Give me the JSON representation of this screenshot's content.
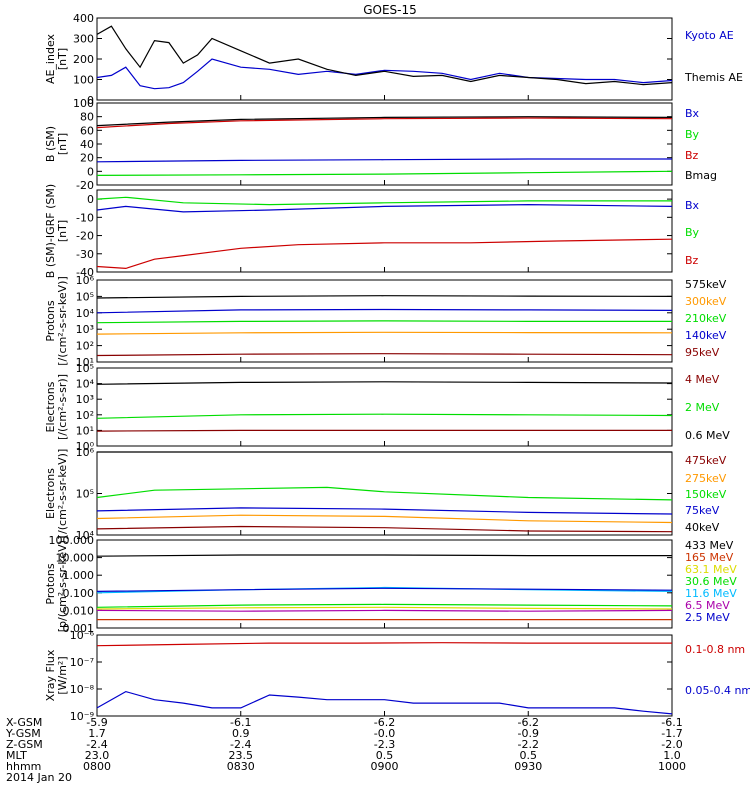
{
  "title": "GOES-15",
  "colors": {
    "black": "#000000",
    "blue": "#0000cc",
    "green": "#00dd00",
    "red": "#cc0000",
    "orange": "#ff9900",
    "darkred": "#880000",
    "yellow": "#dddd00",
    "cyan": "#00bbff",
    "magenta": "#aa00aa",
    "brown": "#cc3300"
  },
  "chart_data": [
    {
      "type": "line",
      "ylabel": [
        "AE_index",
        "[nT]"
      ],
      "ylim": [
        0,
        400
      ],
      "yticks": [
        "400",
        "300",
        "200",
        "100",
        "0"
      ],
      "tickvals": [
        400,
        300,
        200,
        100,
        0
      ],
      "series": [
        {
          "name": "Kyoto AE",
          "color": "blue",
          "x": [
            0,
            0.05,
            0.1,
            0.15,
            0.2,
            0.25,
            0.3,
            0.35,
            0.4,
            0.5,
            0.6,
            0.7,
            0.8,
            0.9,
            1,
            1.1,
            1.2,
            1.3,
            1.4,
            1.5,
            1.6,
            1.7,
            1.8,
            1.9,
            2
          ],
          "values": [
            110,
            120,
            160,
            70,
            55,
            60,
            85,
            140,
            200,
            160,
            150,
            125,
            140,
            125,
            145,
            140,
            130,
            100,
            130,
            110,
            105,
            100,
            100,
            85,
            95
          ]
        },
        {
          "name": "Themis AE",
          "color": "black",
          "x": [
            0,
            0.05,
            0.1,
            0.15,
            0.2,
            0.25,
            0.3,
            0.35,
            0.4,
            0.5,
            0.6,
            0.7,
            0.8,
            0.9,
            1,
            1.1,
            1.2,
            1.3,
            1.4,
            1.5,
            1.6,
            1.7,
            1.8,
            1.9,
            2
          ],
          "values": [
            320,
            360,
            250,
            160,
            290,
            280,
            180,
            220,
            300,
            240,
            180,
            200,
            150,
            120,
            140,
            115,
            120,
            90,
            120,
            110,
            100,
            80,
            90,
            75,
            85
          ]
        }
      ]
    },
    {
      "type": "line",
      "ylabel": [
        "B (SM)",
        "[nT]"
      ],
      "ylim": [
        -20,
        100
      ],
      "yticks": [
        "100",
        "80",
        "60",
        "40",
        "20",
        "0",
        "-20"
      ],
      "tickvals": [
        100,
        80,
        60,
        40,
        20,
        0,
        -20
      ],
      "series": [
        {
          "name": "Bx",
          "color": "blue",
          "x": [
            0,
            0.5,
            1,
            1.5,
            2
          ],
          "values": [
            14,
            16,
            17,
            18,
            18
          ]
        },
        {
          "name": "By",
          "color": "green",
          "x": [
            0,
            0.5,
            1,
            1.5,
            2
          ],
          "values": [
            -6,
            -5,
            -4,
            -2,
            0
          ]
        },
        {
          "name": "Bz",
          "color": "red",
          "x": [
            0,
            0.25,
            0.5,
            1,
            1.5,
            2
          ],
          "values": [
            64,
            70,
            74,
            77,
            78,
            77
          ]
        },
        {
          "name": "Bmag",
          "color": "black",
          "x": [
            0,
            0.25,
            0.5,
            1,
            1.5,
            2
          ],
          "values": [
            67,
            72,
            76,
            79,
            80,
            79
          ]
        }
      ]
    },
    {
      "type": "line",
      "ylabel": [
        "B (SM)-IGRF (SM)",
        "[nT]"
      ],
      "ylim": [
        -40,
        5
      ],
      "yticks": [
        "0",
        "-10",
        "-20",
        "-30",
        "-40"
      ],
      "tickvals": [
        0,
        -10,
        -20,
        -30,
        -40
      ],
      "series": [
        {
          "name": "Bx",
          "color": "blue",
          "x": [
            0,
            0.1,
            0.3,
            0.6,
            1,
            1.5,
            2
          ],
          "values": [
            -6,
            -4,
            -7,
            -6,
            -4,
            -3,
            -4
          ]
        },
        {
          "name": "By",
          "color": "green",
          "x": [
            0,
            0.1,
            0.3,
            0.6,
            1,
            1.5,
            2
          ],
          "values": [
            0,
            1,
            -2,
            -3,
            -2,
            -1,
            -1
          ]
        },
        {
          "name": "Bz",
          "color": "red",
          "x": [
            0,
            0.1,
            0.2,
            0.3,
            0.5,
            0.7,
            1,
            1.3,
            1.6,
            2
          ],
          "values": [
            -37,
            -38,
            -33,
            -31,
            -27,
            -25,
            -24,
            -24,
            -23,
            -22
          ]
        }
      ]
    },
    {
      "type": "line",
      "ylabel": [
        "Protons",
        "[/(cm²-s-sr-keV)]"
      ],
      "ylog": true,
      "ylim": [
        10,
        1000000
      ],
      "yticks": [
        "10⁶",
        "10⁵",
        "10⁴",
        "10³",
        "10²",
        "10¹"
      ],
      "tickvals": [
        1000000,
        100000,
        10000,
        1000,
        100,
        10
      ],
      "series": [
        {
          "name": "575keV",
          "color": "black",
          "x": [
            0,
            0.5,
            1,
            1.5,
            2
          ],
          "values": [
            80000,
            100000,
            110000,
            105000,
            100000
          ]
        },
        {
          "name": "300keV",
          "color": "orange",
          "x": [
            0,
            0.5,
            1,
            1.5,
            2
          ],
          "values": [
            500,
            600,
            650,
            620,
            600
          ]
        },
        {
          "name": "210keV",
          "color": "green",
          "x": [
            0,
            0.5,
            1,
            1.5,
            2
          ],
          "values": [
            2500,
            3000,
            3200,
            3000,
            3000
          ]
        },
        {
          "name": "140keV",
          "color": "blue",
          "x": [
            0,
            0.5,
            1,
            1.5,
            2
          ],
          "values": [
            10000,
            15000,
            16000,
            15000,
            14000
          ]
        },
        {
          "name": "95keV",
          "color": "darkred",
          "x": [
            0,
            0.5,
            1,
            1.5,
            2
          ],
          "values": [
            25,
            30,
            32,
            30,
            28
          ]
        }
      ]
    },
    {
      "type": "line",
      "ylabel": [
        "Electrons",
        "[/(cm²-s-sr)]"
      ],
      "ylog": true,
      "ylim": [
        1,
        100000
      ],
      "yticks": [
        "10⁵",
        "10⁴",
        "10³",
        "10²",
        "10¹",
        "10⁰"
      ],
      "tickvals": [
        100000,
        10000,
        1000,
        100,
        10,
        1
      ],
      "series": [
        {
          "name": "4 MeV",
          "color": "darkred",
          "x": [
            0,
            0.5,
            1,
            1.5,
            2
          ],
          "values": [
            9,
            10,
            10,
            10,
            10
          ]
        },
        {
          "name": "2 MeV",
          "color": "green",
          "x": [
            0,
            0.5,
            1,
            1.5,
            2
          ],
          "values": [
            60,
            100,
            110,
            100,
            90
          ]
        },
        {
          "name": "0.6 MeV",
          "color": "black",
          "x": [
            0,
            0.5,
            1,
            1.5,
            2
          ],
          "values": [
            9000,
            12000,
            13000,
            12000,
            11000
          ]
        }
      ]
    },
    {
      "type": "line",
      "ylabel": [
        "Electrons",
        "[/(cm²-s-sr-keV)]"
      ],
      "ylog": true,
      "ylim": [
        10000,
        1000000
      ],
      "yticks": [
        "10⁶",
        "10⁵",
        "10⁴"
      ],
      "tickvals": [
        1000000,
        100000,
        10000
      ],
      "series": [
        {
          "name": "475keV",
          "color": "darkred",
          "x": [
            0,
            0.5,
            1,
            1.5,
            2
          ],
          "values": [
            14000,
            16000,
            15000,
            12500,
            12000
          ]
        },
        {
          "name": "275keV",
          "color": "orange",
          "x": [
            0,
            0.5,
            1,
            1.5,
            2
          ],
          "values": [
            25000,
            30000,
            28000,
            22000,
            20000
          ]
        },
        {
          "name": "150keV",
          "color": "green",
          "x": [
            0,
            0.2,
            0.5,
            0.8,
            1,
            1.5,
            2
          ],
          "values": [
            80000,
            120000,
            130000,
            140000,
            110000,
            80000,
            70000
          ]
        },
        {
          "name": "75keV",
          "color": "blue",
          "x": [
            0,
            0.5,
            1,
            1.5,
            2
          ],
          "values": [
            38000,
            45000,
            42000,
            35000,
            32000
          ]
        },
        {
          "name": "40keV",
          "color": "black",
          "x": [
            0,
            0.5,
            1,
            1.5,
            2
          ],
          "values": [
            1000000,
            1000000,
            1000000,
            1000000,
            1000000
          ]
        }
      ]
    },
    {
      "type": "line",
      "ylabel": [
        "Protons",
        "[p/(cm²-s-sr-keV)]"
      ],
      "ylog": true,
      "ylim": [
        0.001,
        100
      ],
      "yticks": [
        "100.000",
        "10.000",
        "1.000",
        "0.100",
        "0.010",
        "0.001"
      ],
      "tickvals": [
        100,
        10,
        1,
        0.1,
        0.01,
        0.001
      ],
      "series": [
        {
          "name": "433 MeV",
          "color": "black",
          "x": [
            0,
            0.5,
            1,
            1.5,
            2
          ],
          "values": [
            12,
            14,
            14,
            13,
            13
          ]
        },
        {
          "name": "165 MeV",
          "color": "brown",
          "x": [
            0,
            0.5,
            1,
            1.5,
            2
          ],
          "values": [
            0.003,
            0.003,
            0.003,
            0.003,
            0.003
          ]
        },
        {
          "name": "63.1 MeV",
          "color": "yellow",
          "x": [
            0,
            0.5,
            1,
            1.5,
            2
          ],
          "values": [
            0.012,
            0.014,
            0.015,
            0.013,
            0.012
          ]
        },
        {
          "name": "30.6 MeV",
          "color": "green",
          "x": [
            0,
            0.5,
            1,
            1.5,
            2
          ],
          "values": [
            0.015,
            0.02,
            0.022,
            0.02,
            0.018
          ]
        },
        {
          "name": "11.6 MeV",
          "color": "cyan",
          "x": [
            0,
            0.5,
            1,
            1.5,
            2
          ],
          "values": [
            0.1,
            0.15,
            0.2,
            0.15,
            0.12
          ]
        },
        {
          "name": "6.5 MeV",
          "color": "magenta",
          "x": [
            0,
            0.5,
            1,
            1.5,
            2
          ],
          "values": [
            0.01,
            0.009,
            0.01,
            0.009,
            0.01
          ]
        },
        {
          "name": "2.5 MeV",
          "color": "blue",
          "x": [
            0,
            0.5,
            1,
            1.5,
            2
          ],
          "values": [
            0.12,
            0.15,
            0.18,
            0.16,
            0.14
          ]
        }
      ]
    },
    {
      "type": "line",
      "ylabel": [
        "Xray Flux",
        "[W/m²]"
      ],
      "ylog": true,
      "ylim": [
        1e-09,
        1e-06
      ],
      "yticks": [
        "10⁻⁶",
        "10⁻⁷",
        "10⁻⁸",
        "10⁻⁹"
      ],
      "tickvals": [
        1e-06,
        1e-07,
        1e-08,
        1e-09
      ],
      "series": [
        {
          "name": "0.1-0.8 nm",
          "color": "red",
          "x": [
            0,
            0.3,
            0.6,
            0.9,
            1.2,
            1.5,
            1.8,
            2
          ],
          "values": [
            4e-07,
            4.5e-07,
            5e-07,
            5e-07,
            5.2e-07,
            5e-07,
            5e-07,
            5e-07
          ]
        },
        {
          "name": "0.05-0.4 nm",
          "color": "blue",
          "x": [
            0,
            0.1,
            0.2,
            0.3,
            0.4,
            0.5,
            0.6,
            0.7,
            0.8,
            0.9,
            1,
            1.1,
            1.2,
            1.3,
            1.4,
            1.5,
            1.6,
            1.7,
            1.8,
            1.9,
            2
          ],
          "values": [
            2e-09,
            8e-09,
            4e-09,
            3e-09,
            2e-09,
            2e-09,
            6e-09,
            5e-09,
            4e-09,
            4e-09,
            4e-09,
            3e-09,
            3e-09,
            3e-09,
            3e-09,
            2e-09,
            2e-09,
            2e-09,
            2e-09,
            1.5e-09,
            1.2e-09
          ]
        }
      ]
    }
  ],
  "xaxis": {
    "rows": [
      {
        "label": "X-GSM",
        "values": [
          "-5.9",
          "-6.1",
          "-6.2",
          "-6.2",
          "-6.1"
        ]
      },
      {
        "label": "Y-GSM",
        "values": [
          "1.7",
          "0.9",
          "-0.0",
          "-0.9",
          "-1.7"
        ]
      },
      {
        "label": "Z-GSM",
        "values": [
          "-2.4",
          "-2.4",
          "-2.3",
          "-2.2",
          "-2.0"
        ]
      },
      {
        "label": "MLT",
        "values": [
          "23.0",
          "23.5",
          "0.5",
          "0.5",
          "1.0"
        ]
      },
      {
        "label": "hhmm",
        "values": [
          "0800",
          "0830",
          "0900",
          "0930",
          "1000"
        ]
      }
    ],
    "date": "2014 Jan 20",
    "tickvals": [
      0,
      0.5,
      1,
      1.5,
      2
    ]
  }
}
